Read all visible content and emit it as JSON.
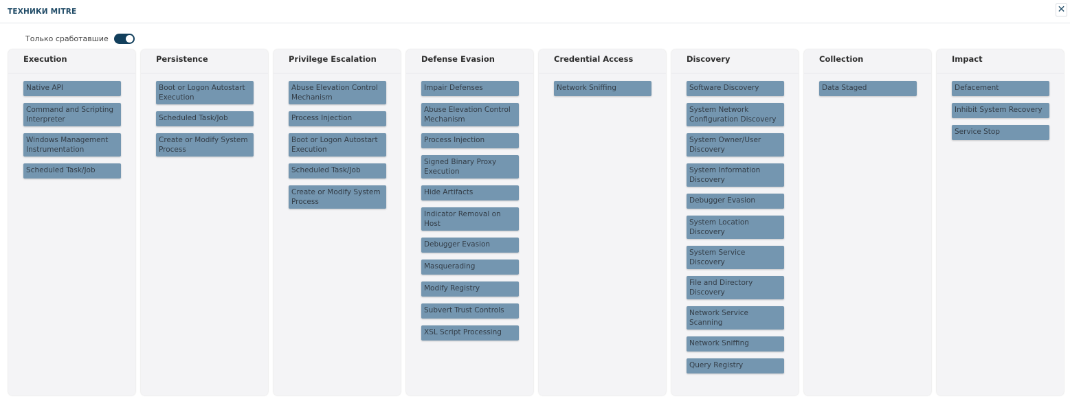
{
  "header": {
    "title": "ТЕХНИКИ MITRE",
    "close_icon": "close-icon"
  },
  "filter": {
    "label": "Только сработавшие",
    "enabled": true
  },
  "colors": {
    "item_bg": "#7496b0",
    "toggle_on": "#123f5c",
    "title": "#1f4a66"
  },
  "columns": [
    {
      "title": "Execution",
      "items": [
        "Native API",
        "Command and Scripting Interpreter",
        "Windows Management Instrumentation",
        "Scheduled Task/Job"
      ]
    },
    {
      "title": "Persistence",
      "items": [
        "Boot or Logon Autostart Execution",
        "Scheduled Task/Job",
        "Create or Modify System Process"
      ]
    },
    {
      "title": "Privilege Escalation",
      "items": [
        "Abuse Elevation Control Mechanism",
        "Process Injection",
        "Boot or Logon Autostart Execution",
        "Scheduled Task/Job",
        "Create or Modify System Process"
      ]
    },
    {
      "title": "Defense Evasion",
      "items": [
        "Impair Defenses",
        "Abuse Elevation Control Mechanism",
        "Process Injection",
        "Signed Binary Proxy Execution",
        "Hide Artifacts",
        "Indicator Removal on Host",
        "Debugger Evasion",
        "Masquerading",
        "Modify Registry",
        "Subvert Trust Controls",
        "XSL Script Processing"
      ]
    },
    {
      "title": "Credential Access",
      "items": [
        "Network Sniffing"
      ]
    },
    {
      "title": "Discovery",
      "items": [
        "Software Discovery",
        "System Network Configuration Discovery",
        "System Owner/User Discovery",
        "System Information Discovery",
        "Debugger Evasion",
        "System Location Discovery",
        "System Service Discovery",
        "File and Directory Discovery",
        "Network Service Scanning",
        "Network Sniffing",
        "Query Registry"
      ]
    },
    {
      "title": "Collection",
      "items": [
        "Data Staged"
      ]
    },
    {
      "title": "Impact",
      "items": [
        "Defacement",
        "Inhibit System Recovery",
        "Service Stop"
      ]
    }
  ]
}
